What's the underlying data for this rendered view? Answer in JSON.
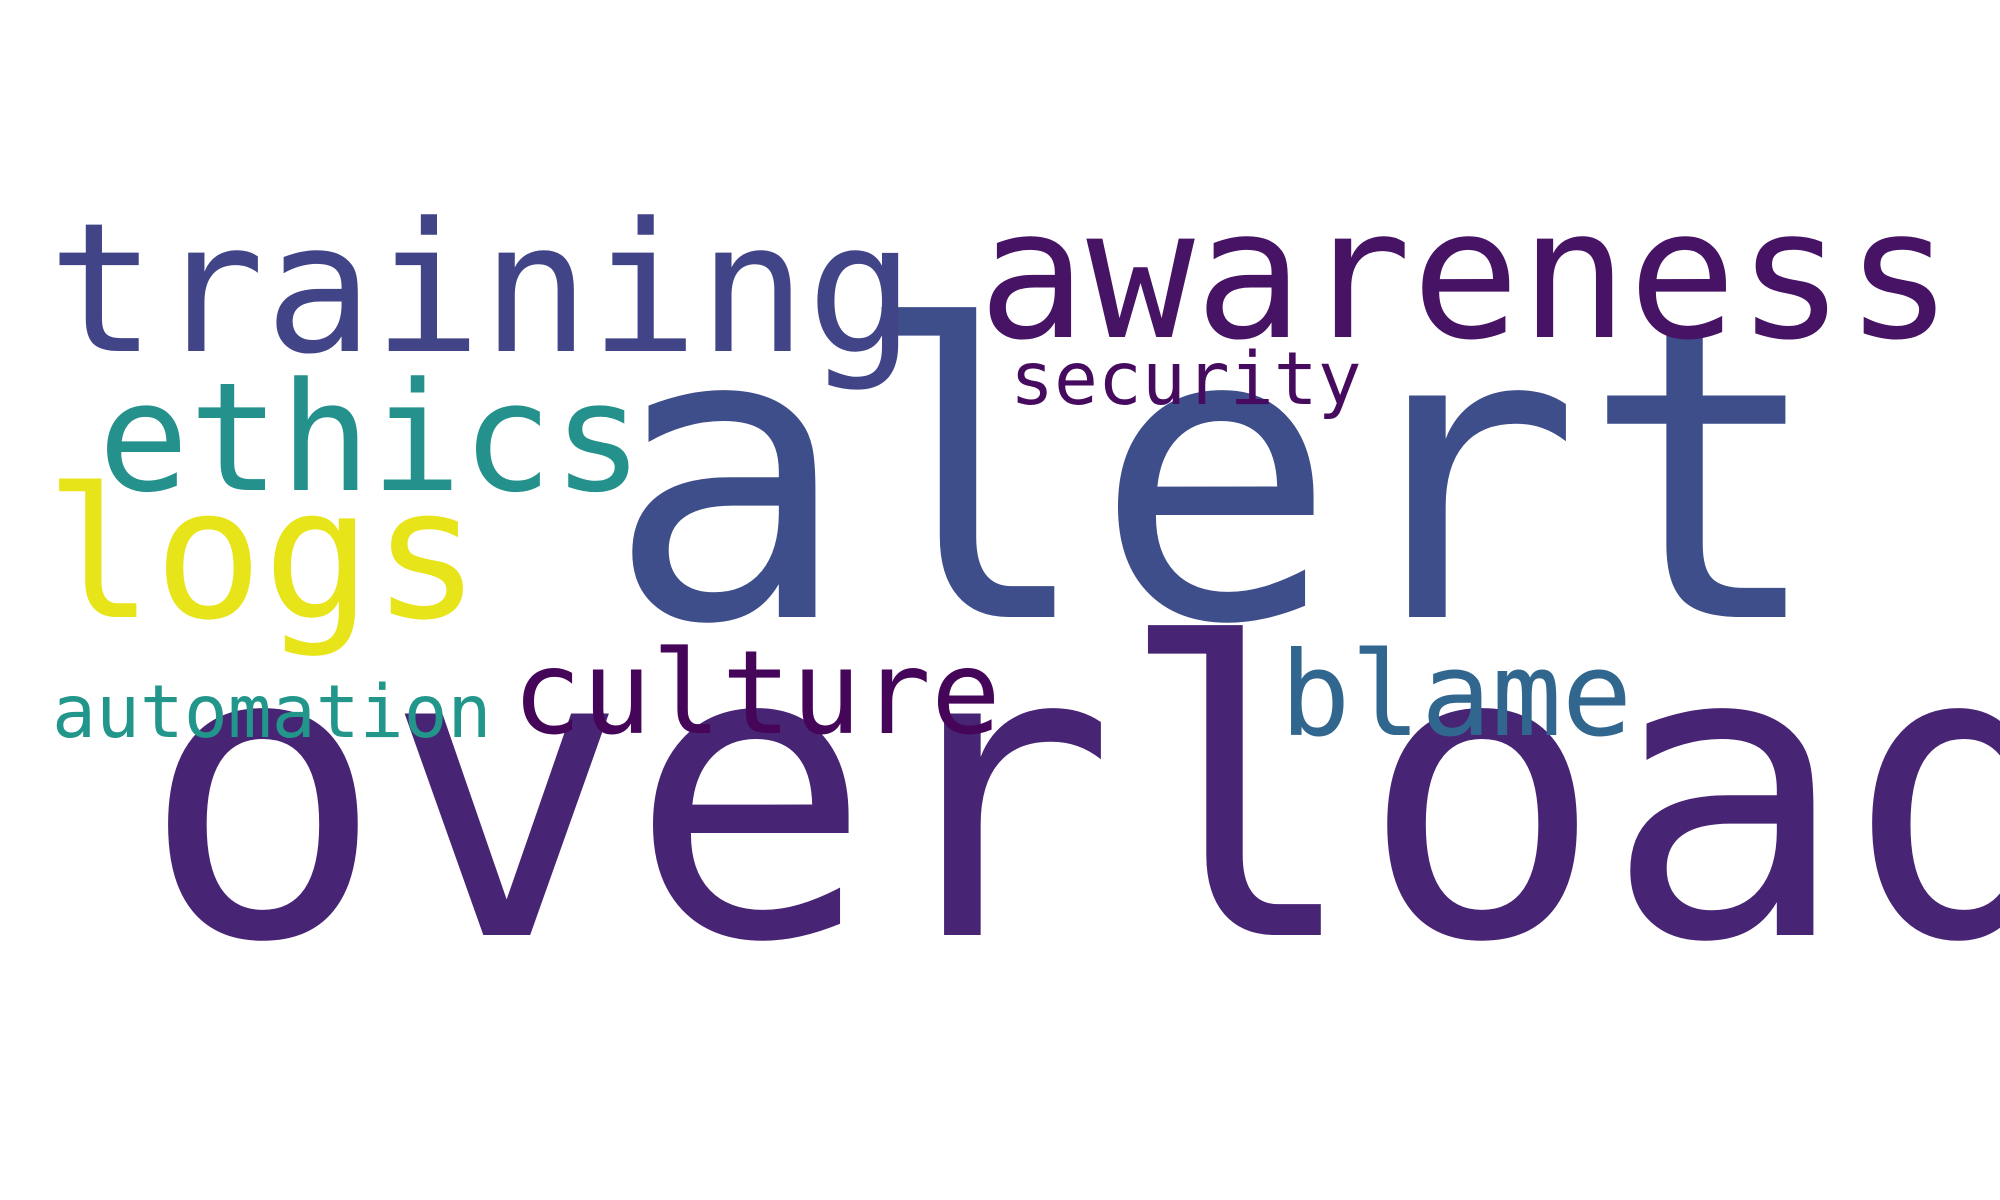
{
  "word_cloud": {
    "background": "#ffffff",
    "words": [
      {
        "text": "overload",
        "color": "#482475"
      },
      {
        "text": "alert",
        "color": "#3e4e8a"
      },
      {
        "text": "awareness",
        "color": "#471365"
      },
      {
        "text": "training",
        "color": "#414487"
      },
      {
        "text": "ethics",
        "color": "#25918c"
      },
      {
        "text": "logs",
        "color": "#e7e419"
      },
      {
        "text": "security",
        "color": "#460b5e"
      },
      {
        "text": "culture",
        "color": "#450559"
      },
      {
        "text": "blame",
        "color": "#31678e"
      },
      {
        "text": "automation",
        "color": "#22968b"
      }
    ]
  }
}
